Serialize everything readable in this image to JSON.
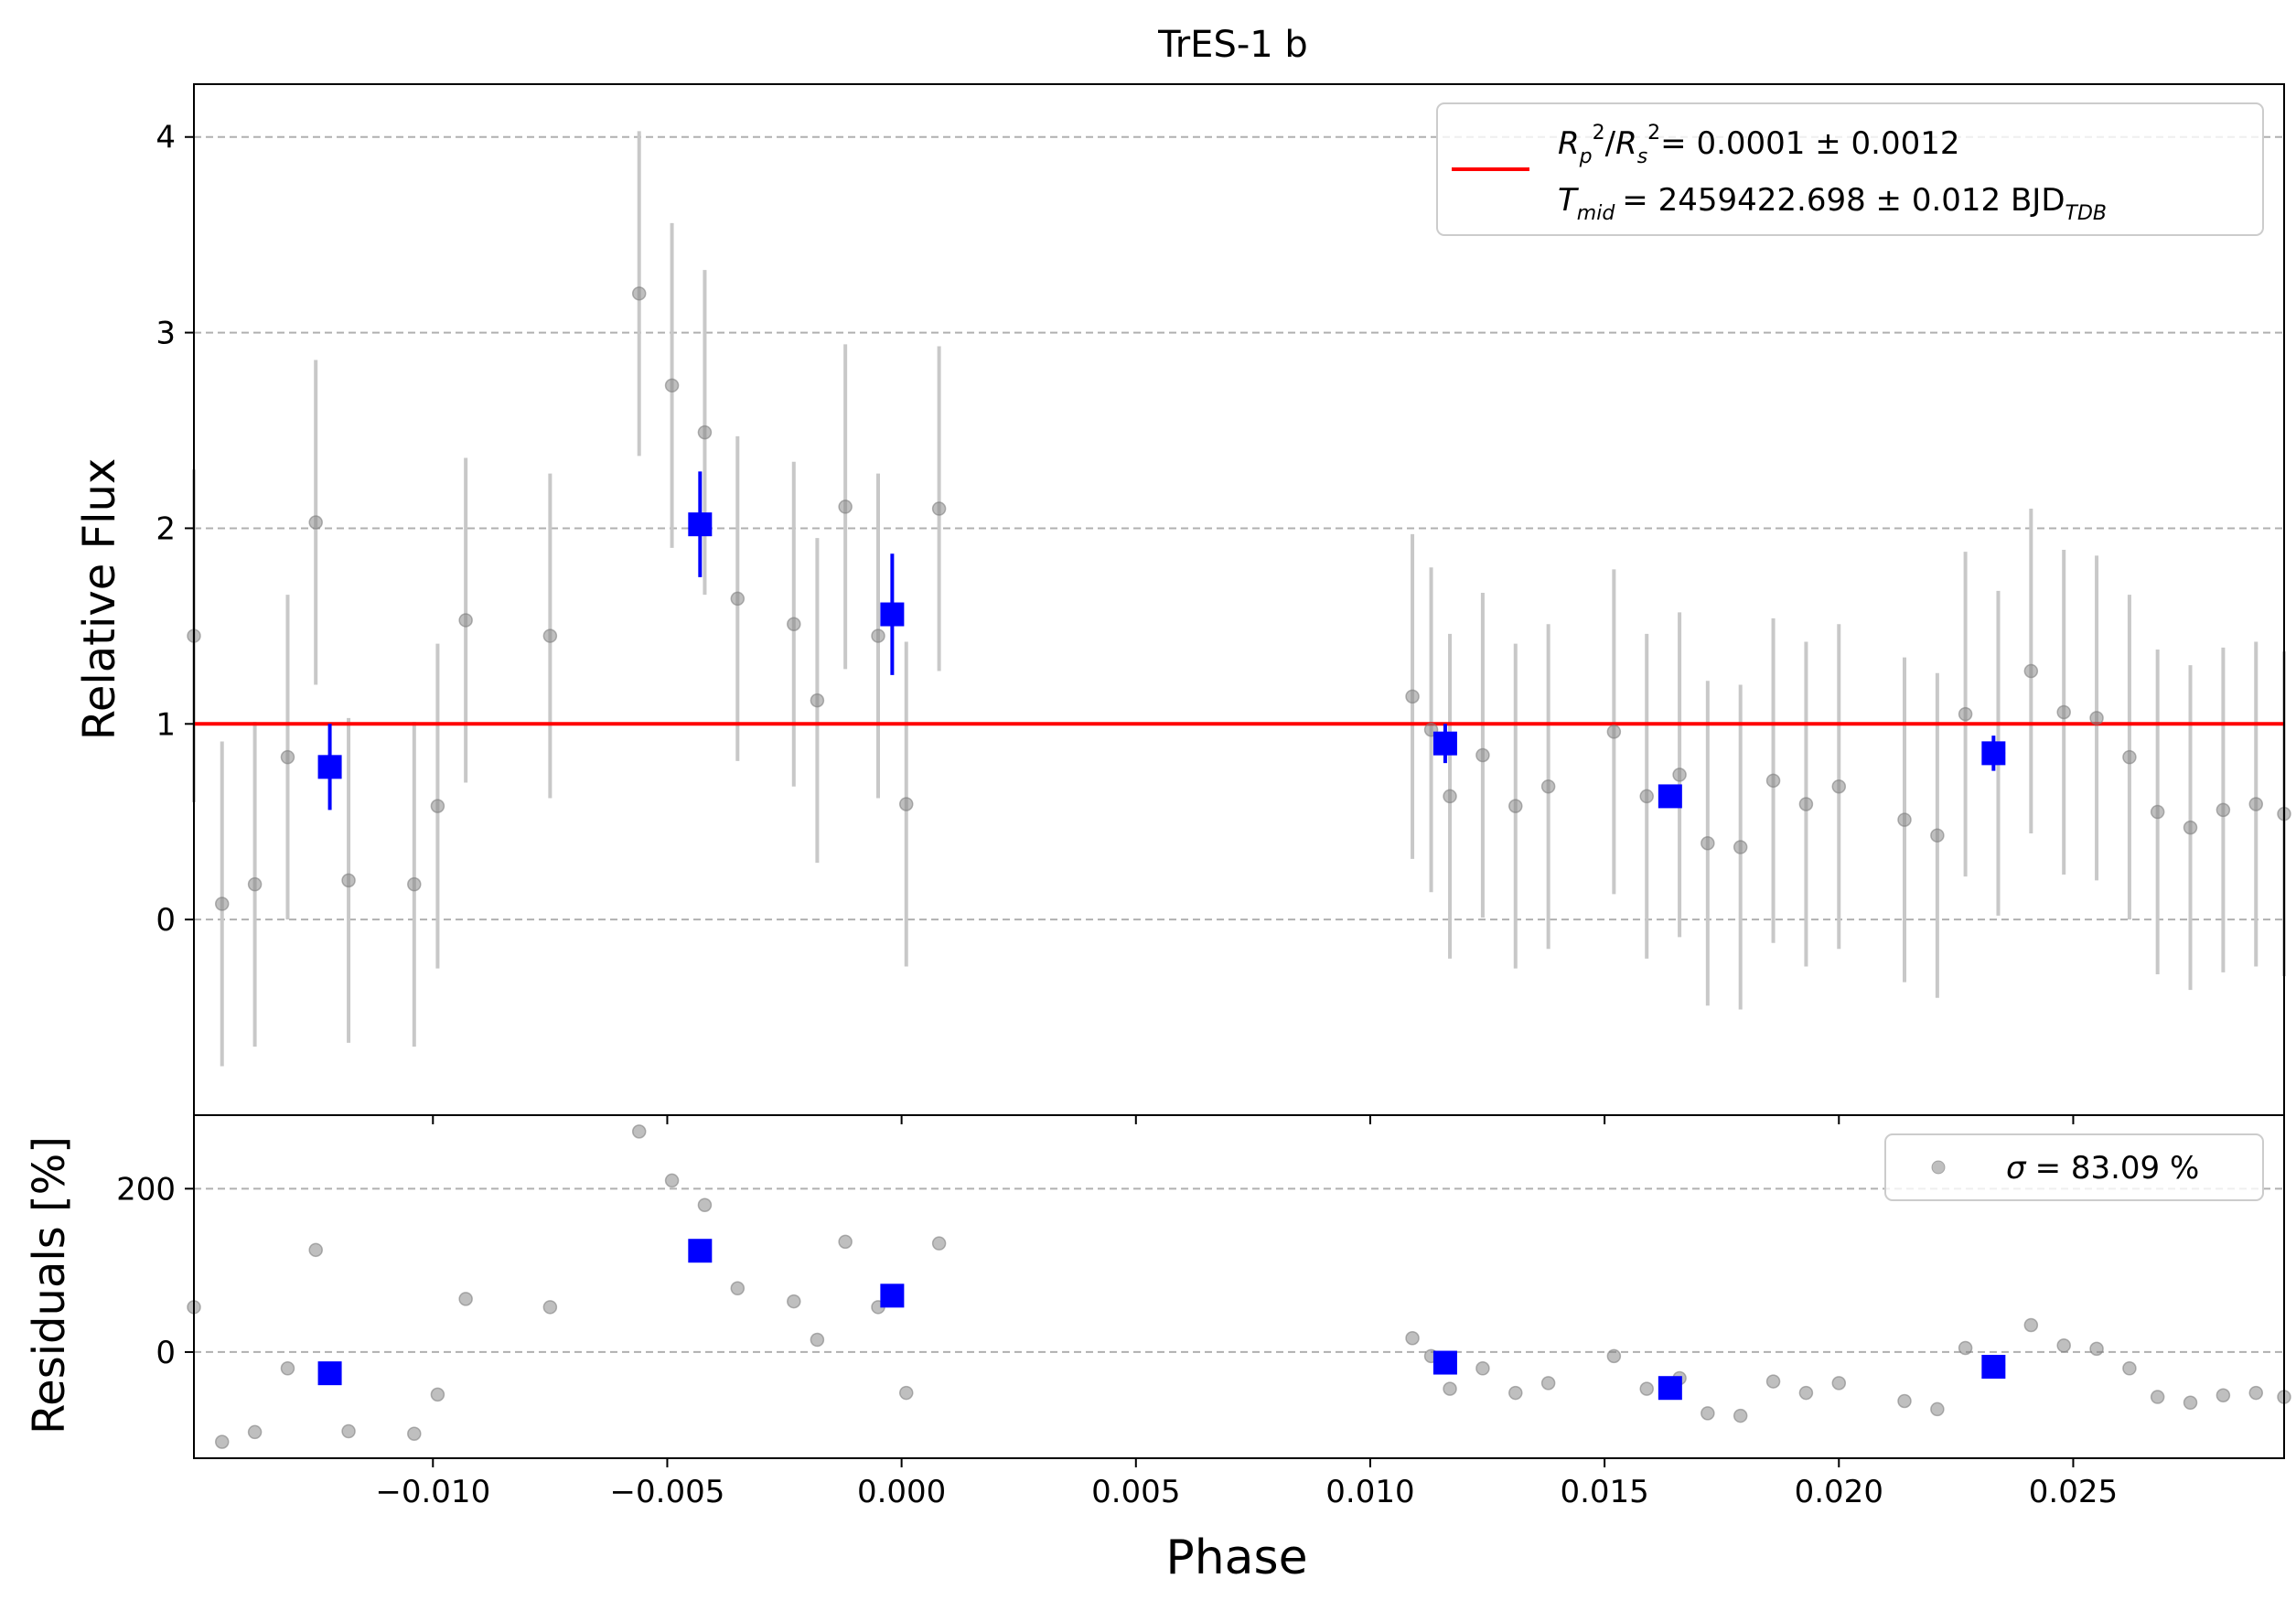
{
  "chart_data": [
    {
      "type": "scatter",
      "panel": "flux",
      "title": "TrES-1 b",
      "xlabel": "",
      "ylabel": "Relative Flux",
      "xlim": [
        -0.0151,
        0.0295
      ],
      "ylim": [
        -1.0,
        4.27
      ],
      "grid": "y-dashed",
      "legend_position": "top-right",
      "x_ticks": [
        -0.01,
        -0.005,
        0.0,
        0.005,
        0.01,
        0.015,
        0.02,
        0.025
      ],
      "y_ticks": [
        0,
        1,
        2,
        3,
        4
      ],
      "y_tick_labels": [
        "0",
        "1",
        "2",
        "3",
        "4"
      ],
      "model_line": {
        "y": 1.0,
        "color": "#ff0000"
      },
      "legend": {
        "rp_value": "= 0.0001 ± 0.0012",
        "tmid_value": "= 2459422.698 ± 0.012 BJD",
        "tmid_unit_sub": "TDB"
      },
      "raw_points": [
        {
          "x": -0.0151,
          "y": 1.45,
          "err": 0.85
        },
        {
          "x": -0.0145,
          "y": 0.08,
          "err": 0.83
        },
        {
          "x": -0.0138,
          "y": 0.18,
          "err": 0.83
        },
        {
          "x": -0.0131,
          "y": 0.83,
          "err": 0.83
        },
        {
          "x": -0.0125,
          "y": 2.03,
          "err": 0.83
        },
        {
          "x": -0.0118,
          "y": 0.2,
          "err": 0.83
        },
        {
          "x": -0.0104,
          "y": 0.18,
          "err": 0.83
        },
        {
          "x": -0.0099,
          "y": 0.58,
          "err": 0.83
        },
        {
          "x": -0.0093,
          "y": 1.53,
          "err": 0.83
        },
        {
          "x": -0.0075,
          "y": 1.45,
          "err": 0.83
        },
        {
          "x": -0.0056,
          "y": 3.2,
          "err": 0.83
        },
        {
          "x": -0.0049,
          "y": 2.73,
          "err": 0.83
        },
        {
          "x": -0.0042,
          "y": 2.49,
          "err": 0.83
        },
        {
          "x": -0.0035,
          "y": 1.64,
          "err": 0.83
        },
        {
          "x": -0.0023,
          "y": 1.51,
          "err": 0.83
        },
        {
          "x": -0.0018,
          "y": 1.12,
          "err": 0.83
        },
        {
          "x": -0.0012,
          "y": 2.11,
          "err": 0.83
        },
        {
          "x": -0.0005,
          "y": 1.45,
          "err": 0.83
        },
        {
          "x": 0.0001,
          "y": 0.59,
          "err": 0.83
        },
        {
          "x": 0.0008,
          "y": 2.1,
          "err": 0.83
        },
        {
          "x": 0.0109,
          "y": 1.14,
          "err": 0.83
        },
        {
          "x": 0.0113,
          "y": 0.97,
          "err": 0.83
        },
        {
          "x": 0.0117,
          "y": 0.63,
          "err": 0.83
        },
        {
          "x": 0.0124,
          "y": 0.84,
          "err": 0.83
        },
        {
          "x": 0.0131,
          "y": 0.58,
          "err": 0.83
        },
        {
          "x": 0.0138,
          "y": 0.68,
          "err": 0.83
        },
        {
          "x": 0.0152,
          "y": 0.96,
          "err": 0.83
        },
        {
          "x": 0.0159,
          "y": 0.63,
          "err": 0.83
        },
        {
          "x": 0.0166,
          "y": 0.74,
          "err": 0.83
        },
        {
          "x": 0.0172,
          "y": 0.39,
          "err": 0.83
        },
        {
          "x": 0.0179,
          "y": 0.37,
          "err": 0.83
        },
        {
          "x": 0.0186,
          "y": 0.71,
          "err": 0.83
        },
        {
          "x": 0.0193,
          "y": 0.59,
          "err": 0.83
        },
        {
          "x": 0.02,
          "y": 0.68,
          "err": 0.83
        },
        {
          "x": 0.0214,
          "y": 0.51,
          "err": 0.83
        },
        {
          "x": 0.0221,
          "y": 0.43,
          "err": 0.83
        },
        {
          "x": 0.0227,
          "y": 1.05,
          "err": 0.83
        },
        {
          "x": 0.0234,
          "y": 0.85,
          "err": 0.83
        },
        {
          "x": 0.0241,
          "y": 1.27,
          "err": 0.83
        },
        {
          "x": 0.0248,
          "y": 1.06,
          "err": 0.83
        },
        {
          "x": 0.0255,
          "y": 1.03,
          "err": 0.83
        },
        {
          "x": 0.0262,
          "y": 0.83,
          "err": 0.83
        },
        {
          "x": 0.0268,
          "y": 0.55,
          "err": 0.83
        },
        {
          "x": 0.0275,
          "y": 0.47,
          "err": 0.83
        },
        {
          "x": 0.0282,
          "y": 0.56,
          "err": 0.83
        },
        {
          "x": 0.0289,
          "y": 0.59,
          "err": 0.83
        },
        {
          "x": 0.0295,
          "y": 0.54,
          "err": 0.83
        }
      ],
      "binned_points": [
        {
          "x": -0.0122,
          "y": 0.78,
          "err": 0.22
        },
        {
          "x": -0.0043,
          "y": 2.02,
          "err": 0.27
        },
        {
          "x": -0.0002,
          "y": 1.56,
          "err": 0.31
        },
        {
          "x": 0.0116,
          "y": 0.9,
          "err": 0.1
        },
        {
          "x": 0.0164,
          "y": 0.63,
          "err": 0.05
        },
        {
          "x": 0.0233,
          "y": 0.85,
          "err": 0.09
        }
      ]
    },
    {
      "type": "scatter",
      "panel": "residuals",
      "xlabel": "Phase",
      "ylabel": "Residuals [%]",
      "xlim": [
        -0.0151,
        0.0295
      ],
      "ylim": [
        -130,
        290
      ],
      "grid": "y-dashed",
      "legend_position": "top-right",
      "x_ticks": [
        -0.01,
        -0.005,
        0.0,
        0.005,
        0.01,
        0.015,
        0.02,
        0.025
      ],
      "x_tick_labels": [
        "−0.010",
        "−0.005",
        "0.000",
        "0.005",
        "0.010",
        "0.015",
        "0.020",
        "0.025"
      ],
      "y_ticks": [
        0,
        200
      ],
      "y_tick_labels": [
        "0",
        "200"
      ],
      "legend": {
        "label": "= 83.09 %",
        "symbol": "σ"
      },
      "raw_points": [
        {
          "x": -0.0151,
          "y": 55
        },
        {
          "x": -0.0145,
          "y": -110
        },
        {
          "x": -0.0138,
          "y": -98
        },
        {
          "x": -0.0131,
          "y": -20
        },
        {
          "x": -0.0125,
          "y": 125
        },
        {
          "x": -0.0118,
          "y": -97
        },
        {
          "x": -0.0104,
          "y": -100
        },
        {
          "x": -0.0099,
          "y": -52
        },
        {
          "x": -0.0093,
          "y": 65
        },
        {
          "x": -0.0075,
          "y": 55
        },
        {
          "x": -0.0056,
          "y": 270
        },
        {
          "x": -0.0049,
          "y": 210
        },
        {
          "x": -0.0042,
          "y": 180
        },
        {
          "x": -0.0035,
          "y": 78
        },
        {
          "x": -0.0023,
          "y": 62
        },
        {
          "x": -0.0018,
          "y": 15
        },
        {
          "x": -0.0012,
          "y": 135
        },
        {
          "x": -0.0005,
          "y": 55
        },
        {
          "x": 0.0001,
          "y": -50
        },
        {
          "x": 0.0008,
          "y": 133
        },
        {
          "x": 0.0109,
          "y": 17
        },
        {
          "x": 0.0113,
          "y": -5
        },
        {
          "x": 0.0117,
          "y": -45
        },
        {
          "x": 0.0124,
          "y": -20
        },
        {
          "x": 0.0131,
          "y": -50
        },
        {
          "x": 0.0138,
          "y": -38
        },
        {
          "x": 0.0152,
          "y": -5
        },
        {
          "x": 0.0159,
          "y": -45
        },
        {
          "x": 0.0166,
          "y": -32
        },
        {
          "x": 0.0172,
          "y": -75
        },
        {
          "x": 0.0179,
          "y": -78
        },
        {
          "x": 0.0186,
          "y": -36
        },
        {
          "x": 0.0193,
          "y": -50
        },
        {
          "x": 0.02,
          "y": -38
        },
        {
          "x": 0.0214,
          "y": -60
        },
        {
          "x": 0.0221,
          "y": -70
        },
        {
          "x": 0.0227,
          "y": 5
        },
        {
          "x": 0.0234,
          "y": -15
        },
        {
          "x": 0.0241,
          "y": 33
        },
        {
          "x": 0.0248,
          "y": 8
        },
        {
          "x": 0.0255,
          "y": 4
        },
        {
          "x": 0.0262,
          "y": -20
        },
        {
          "x": 0.0268,
          "y": -55
        },
        {
          "x": 0.0275,
          "y": -62
        },
        {
          "x": 0.0282,
          "y": -53
        },
        {
          "x": 0.0289,
          "y": -50
        },
        {
          "x": 0.0295,
          "y": -55
        }
      ],
      "binned_points": [
        {
          "x": -0.0122,
          "y": -26
        },
        {
          "x": -0.0043,
          "y": 124
        },
        {
          "x": -0.0002,
          "y": 69
        },
        {
          "x": 0.0116,
          "y": -13
        },
        {
          "x": 0.0164,
          "y": -44
        },
        {
          "x": 0.0233,
          "y": -18
        }
      ]
    }
  ]
}
